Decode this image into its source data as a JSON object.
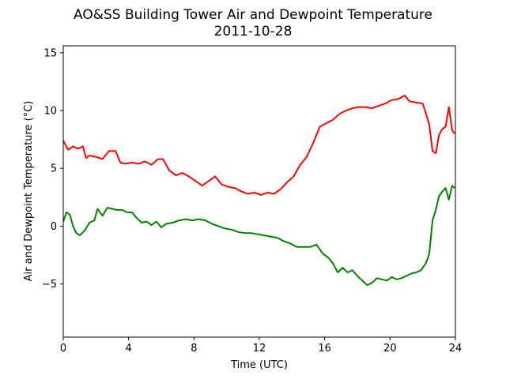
{
  "chart_data": {
    "type": "line",
    "title": "AO&SS Building Tower Air and Dewpoint Temperature",
    "subtitle": "2011-10-28",
    "xlabel": "Time (UTC)",
    "ylabel": "Air and Dewpoint Temperature (°C)",
    "xlim": [
      0,
      24
    ],
    "ylim": [
      -9.6,
      15.6
    ],
    "xticks": [
      0,
      4,
      8,
      12,
      16,
      20,
      24
    ],
    "yticks": [
      -5,
      0,
      5,
      10,
      15
    ],
    "grid": false,
    "series": [
      {
        "color": "#ff0000",
        "x": [
          0,
          0.3,
          0.6,
          0.9,
          1.2,
          1.4,
          1.6,
          2.0,
          2.4,
          2.8,
          3.2,
          3.5,
          3.8,
          4.2,
          4.6,
          5.0,
          5.4,
          5.8,
          6.1,
          6.5,
          6.9,
          7.3,
          7.7,
          8.1,
          8.5,
          8.9,
          9.3,
          9.7,
          10.1,
          10.5,
          10.9,
          11.3,
          11.7,
          12.1,
          12.5,
          12.9,
          13.3,
          13.7,
          14.1,
          14.5,
          14.9,
          15.3,
          15.7,
          16.1,
          16.5,
          16.9,
          17.3,
          17.7,
          18.1,
          18.5,
          18.9,
          19.3,
          19.7,
          20.1,
          20.5,
          20.9,
          21.2,
          21.6,
          22.0,
          22.4,
          22.6,
          22.8,
          23.0,
          23.2,
          23.4,
          23.6,
          23.8,
          23.95
        ],
        "values": [
          7.4,
          6.6,
          6.9,
          6.7,
          6.9,
          5.9,
          6.1,
          6.0,
          5.8,
          6.5,
          6.5,
          5.5,
          5.4,
          5.5,
          5.4,
          5.6,
          5.3,
          5.8,
          5.8,
          4.8,
          4.4,
          4.6,
          4.3,
          3.9,
          3.5,
          3.9,
          4.3,
          3.6,
          3.4,
          3.3,
          3.0,
          2.8,
          2.9,
          2.7,
          2.9,
          2.8,
          3.2,
          3.8,
          4.3,
          5.3,
          6.0,
          7.2,
          8.6,
          8.9,
          9.2,
          9.7,
          10.0,
          10.2,
          10.3,
          10.3,
          10.2,
          10.4,
          10.6,
          10.9,
          11.0,
          11.3,
          10.8,
          10.7,
          10.6,
          8.8,
          6.5,
          6.3,
          7.9,
          8.4,
          8.6,
          10.3,
          8.3,
          8.0
        ]
      },
      {
        "color": "#008000",
        "x": [
          0,
          0.2,
          0.4,
          0.6,
          0.8,
          1.0,
          1.3,
          1.6,
          1.9,
          2.1,
          2.4,
          2.7,
          3.0,
          3.3,
          3.6,
          3.9,
          4.2,
          4.5,
          4.8,
          5.1,
          5.4,
          5.7,
          6.0,
          6.3,
          6.7,
          7.1,
          7.5,
          7.9,
          8.3,
          8.7,
          9.1,
          9.5,
          9.9,
          10.3,
          10.7,
          11.1,
          11.5,
          11.9,
          12.3,
          12.7,
          13.1,
          13.5,
          13.9,
          14.3,
          14.7,
          15.1,
          15.5,
          15.9,
          16.2,
          16.5,
          16.8,
          17.1,
          17.4,
          17.7,
          18.0,
          18.3,
          18.6,
          18.9,
          19.2,
          19.5,
          19.8,
          20.1,
          20.4,
          20.7,
          21.0,
          21.3,
          21.6,
          21.9,
          22.2,
          22.4,
          22.6,
          22.8,
          23.0,
          23.2,
          23.4,
          23.6,
          23.8,
          23.95
        ],
        "values": [
          0.4,
          1.2,
          1.0,
          0.0,
          -0.6,
          -0.8,
          -0.4,
          0.3,
          0.5,
          1.5,
          0.9,
          1.6,
          1.5,
          1.4,
          1.4,
          1.2,
          1.2,
          0.7,
          0.3,
          0.4,
          0.1,
          0.4,
          -0.1,
          0.2,
          0.3,
          0.5,
          0.6,
          0.5,
          0.6,
          0.5,
          0.2,
          0.0,
          -0.2,
          -0.3,
          -0.5,
          -0.6,
          -0.6,
          -0.7,
          -0.8,
          -0.9,
          -1.0,
          -1.3,
          -1.5,
          -1.8,
          -1.8,
          -1.8,
          -1.6,
          -2.4,
          -2.7,
          -3.2,
          -4.0,
          -3.6,
          -4.0,
          -3.8,
          -4.3,
          -4.7,
          -5.1,
          -4.9,
          -4.5,
          -4.6,
          -4.7,
          -4.4,
          -4.6,
          -4.5,
          -4.3,
          -4.1,
          -4.0,
          -3.8,
          -3.2,
          -2.4,
          0.5,
          1.4,
          2.6,
          3.0,
          3.3,
          2.3,
          3.5,
          3.3
        ]
      }
    ]
  }
}
